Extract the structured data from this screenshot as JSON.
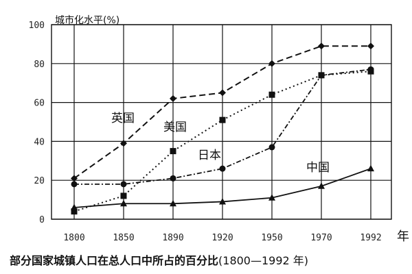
{
  "chart_data": {
    "type": "line",
    "title": "部分国家城镇人口在总人口中所占的百分比",
    "title_range": "(1800—1992 年)",
    "ylabel": "城市化水平(%)",
    "xlabel": "年",
    "x": [
      "1800",
      "1850",
      "1890",
      "1920",
      "1950",
      "1970",
      "1992"
    ],
    "yticks": [
      "0",
      "20",
      "40",
      "60",
      "80",
      "100"
    ],
    "ylim": [
      0,
      100
    ],
    "grid": true,
    "series": [
      {
        "name": "英国",
        "marker": "diamond",
        "line": "dashed",
        "values": [
          21,
          39,
          62,
          65,
          80,
          89,
          89
        ]
      },
      {
        "name": "美国",
        "marker": "square",
        "line": "dotted",
        "values": [
          4,
          12,
          35,
          51,
          64,
          74,
          76
        ]
      },
      {
        "name": "日本",
        "marker": "circle",
        "line": "dash-dot",
        "values": [
          18,
          18,
          21,
          26,
          37,
          74,
          77
        ]
      },
      {
        "name": "中国",
        "marker": "triangle",
        "line": "solid",
        "values": [
          6,
          8,
          8,
          9,
          11,
          17,
          26
        ]
      }
    ]
  }
}
